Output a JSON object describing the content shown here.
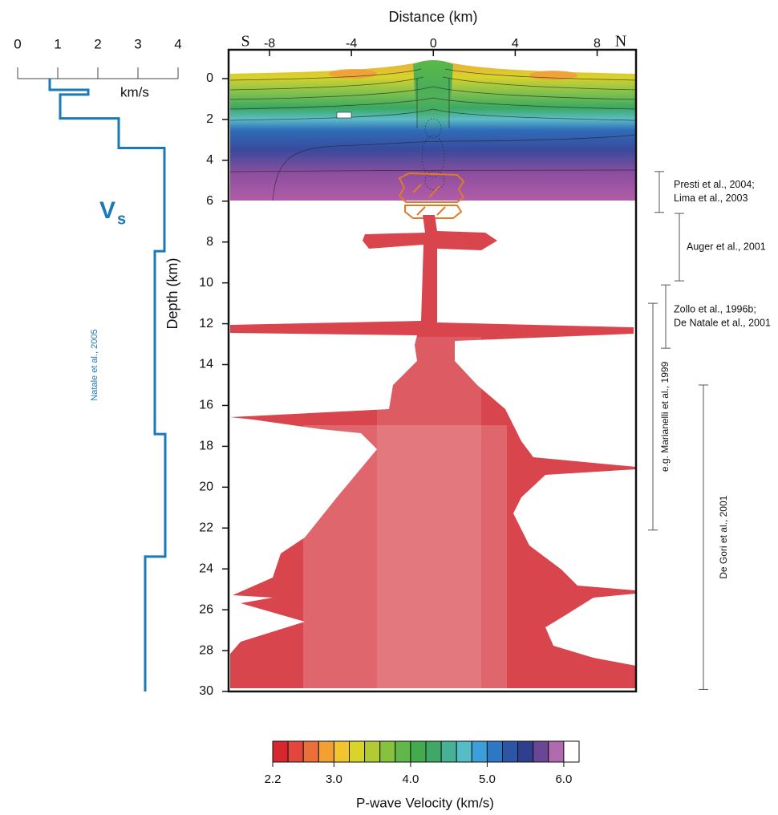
{
  "chart_data": [
    {
      "type": "line",
      "x_label": "km/s",
      "series_label": {
        "main": "V",
        "sub": "s"
      },
      "annotation": "Natale et al., 2005",
      "color": "#1a7ab8",
      "xlim": [
        0,
        4
      ],
      "xticks": [
        0,
        1,
        2,
        3,
        4
      ],
      "ylim": [
        -1.4,
        30
      ],
      "x": [
        0.8,
        0.8,
        1.76,
        1.76,
        1.06,
        1.06,
        2.52,
        2.52,
        3.66,
        3.66,
        3.42,
        3.42,
        3.68,
        3.68,
        3.18,
        3.18
      ],
      "values": [
        0,
        0.55,
        0.55,
        0.78,
        0.78,
        1.95,
        1.95,
        3.4,
        3.4,
        8.45,
        8.45,
        17.4,
        17.4,
        23.4,
        23.4,
        30
      ]
    },
    {
      "type": "section",
      "x_label": "Distance (km)",
      "y_label": "Depth (km)",
      "end_labels": [
        "S",
        "N"
      ],
      "xlim": [
        -10,
        9.9
      ],
      "xticks": [
        -8,
        -4,
        0,
        4,
        8
      ],
      "ylim": [
        -1.4,
        30
      ],
      "yticks": [
        0,
        2,
        4,
        6,
        8,
        10,
        12,
        14,
        16,
        18,
        20,
        22,
        24,
        26,
        28,
        30
      ],
      "references": [
        {
          "lines": [
            "Presti et al., 2004;",
            "Lima et al., 2003"
          ],
          "range": [
            4.55,
            6.55
          ]
        },
        {
          "lines": [
            "Auger et al., 2001"
          ],
          "range": [
            6.6,
            9.9
          ]
        },
        {
          "lines": [
            "Zollo et al., 1996b;",
            "De Natale et al., 2001"
          ],
          "range": [
            10.1,
            13.2
          ]
        },
        {
          "lines": [
            "e.g. Marianelli et al., 1999"
          ],
          "range": [
            11.0,
            22.1
          ]
        },
        {
          "lines": [
            "De Gori et al., 2001"
          ],
          "range": [
            15.0,
            29.9
          ]
        }
      ]
    },
    {
      "type": "colorbar",
      "label": "P-wave Velocity (km/s)",
      "bins": [
        2.2,
        2.4,
        2.6,
        2.8,
        3.0,
        3.2,
        3.4,
        3.6,
        3.8,
        4.0,
        4.2,
        4.4,
        4.6,
        4.8,
        5.0,
        5.2,
        5.4,
        5.6,
        5.8,
        6.0,
        6.2
      ],
      "colors": [
        "#d7262e",
        "#e2463c",
        "#ec6f3a",
        "#f3a033",
        "#f2c52e",
        "#d9d42a",
        "#b2cb32",
        "#86c23e",
        "#5fb847",
        "#43ab4e",
        "#3fa866",
        "#46b295",
        "#56bcc8",
        "#3a9fdb",
        "#2d78c2",
        "#2d55a6",
        "#2f3f8e",
        "#6a4696",
        "#b06aae",
        "#ffffff"
      ],
      "xlim": [
        2.2,
        6.2
      ],
      "xticks": [
        2.2,
        {
          "value": 3,
          "label": "3.0"
        },
        {
          "value": 4,
          "label": "4.0"
        },
        {
          "value": 5,
          "label": "5.0"
        },
        {
          "value": 6,
          "label": "6.0"
        }
      ]
    }
  ]
}
